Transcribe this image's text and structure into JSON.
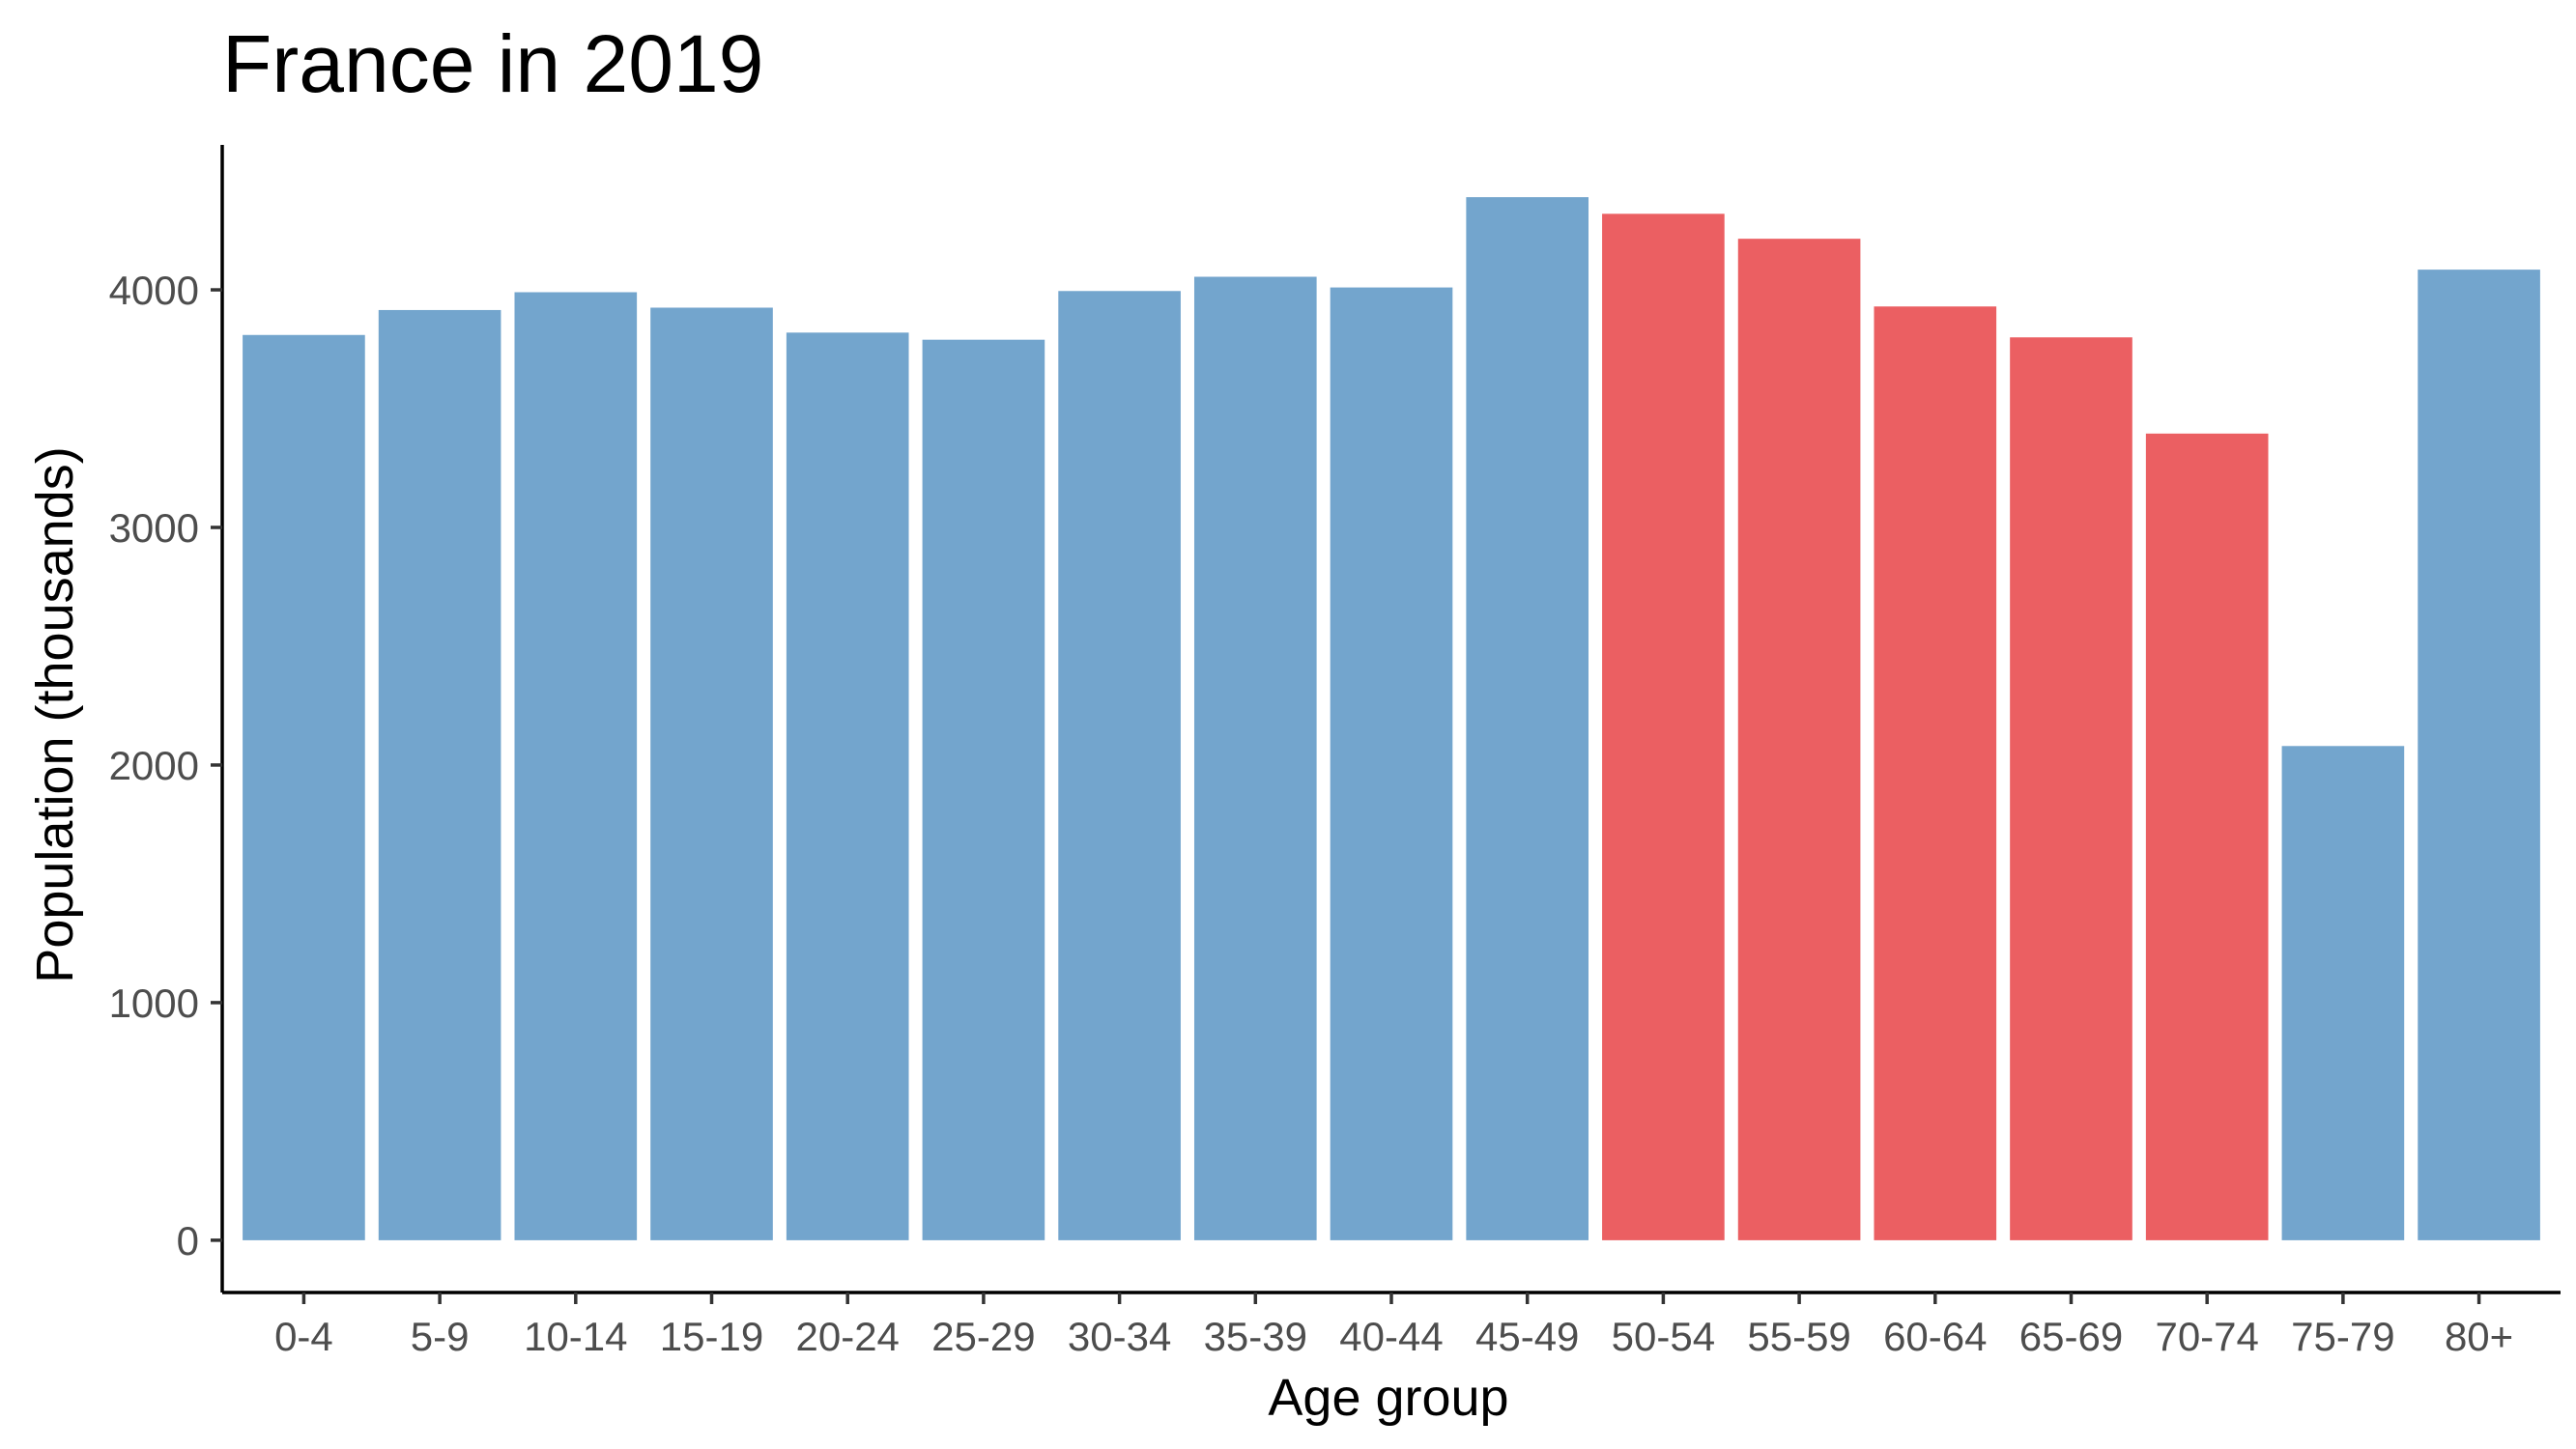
{
  "chart_data": {
    "type": "bar",
    "title": "France in 2019",
    "xlabel": "Age group",
    "ylabel": "Population (thousands)",
    "categories": [
      "0-4",
      "5-9",
      "10-14",
      "15-19",
      "20-24",
      "25-29",
      "30-34",
      "35-39",
      "40-44",
      "45-49",
      "50-54",
      "55-59",
      "60-64",
      "65-69",
      "70-74",
      "75-79",
      "80+"
    ],
    "values": [
      3810,
      3915,
      3990,
      3925,
      3820,
      3790,
      3995,
      4055,
      4010,
      4390,
      4320,
      4215,
      3930,
      3800,
      3395,
      2080,
      4085
    ],
    "highlighted": [
      false,
      false,
      false,
      false,
      false,
      false,
      false,
      false,
      false,
      false,
      true,
      true,
      true,
      true,
      true,
      false,
      false
    ],
    "y_ticks": [
      0,
      1000,
      2000,
      3000,
      4000
    ],
    "y_tick_labels": [
      "0",
      "1000",
      "2000",
      "3000",
      "4000"
    ],
    "ylim": [
      -220,
      4610
    ],
    "grid": false,
    "legend": "none",
    "colors": {
      "default": "#73a5cd",
      "highlight": "#eb5f62"
    }
  }
}
